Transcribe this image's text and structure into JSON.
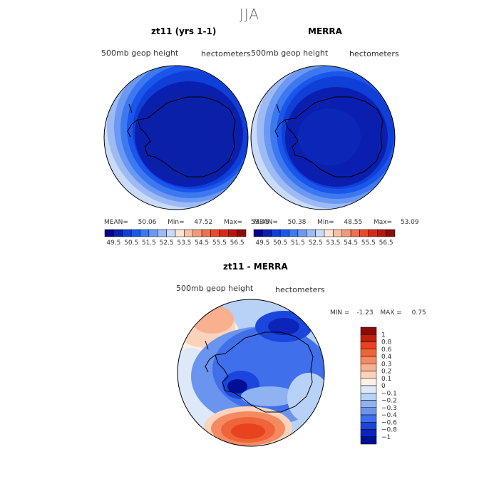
{
  "suptitle": "JJA",
  "panels": [
    {
      "title": "zt11 (yrs 1-1)",
      "field": "500mb geop height",
      "units": "hectometers",
      "stats": {
        "mean_label": "MEAN=",
        "mean": "50.06",
        "min_label": "Min=",
        "min": "47.52",
        "max_label": "Max=",
        "max": "53.45"
      }
    },
    {
      "title": "MERRA",
      "field": "500mb geop height",
      "units": "hectometers",
      "stats": {
        "mean_label": "MEAN=",
        "mean": "50.38",
        "min_label": "Min=",
        "min": "48.55",
        "max_label": "Max=",
        "max": "53.09"
      }
    }
  ],
  "colorbar_top": {
    "labels": [
      "49.5",
      "50.5",
      "51.5",
      "52.5",
      "53.5",
      "54.5",
      "55.5",
      "56.5"
    ],
    "colors": [
      "#00008b",
      "#0a1fb0",
      "#0f3fd6",
      "#1a55ec",
      "#3c78f0",
      "#6b98f2",
      "#9dbaf5",
      "#c9dbfa",
      "#fbe4d4",
      "#f7c1a5",
      "#f39a7a",
      "#ee7150",
      "#e84a2c",
      "#d62a14",
      "#b5170b",
      "#8a0c05"
    ]
  },
  "diff_panel": {
    "title": "zt11 - MERRA",
    "field": "500mb geop height",
    "units": "hectometers",
    "min_label": "MIN =",
    "min": "-1.23",
    "max_label": "MAX =",
    "max": "0.75"
  },
  "colorbar_diff": {
    "labels": [
      "1",
      "0.8",
      "0.6",
      "0.4",
      "0.3",
      "0.2",
      "0.1",
      "0",
      "−0.1",
      "−0.2",
      "−0.3",
      "−0.4",
      "−0.6",
      "−0.8",
      "−1"
    ],
    "colors": [
      "#8a0c05",
      "#c41f0e",
      "#e8431f",
      "#f0643a",
      "#f58a62",
      "#f8b08f",
      "#fbd3bd",
      "#fdf0e6",
      "#dde9f9",
      "#b8d1f6",
      "#8fb2f2",
      "#6a94ee",
      "#3f6fea",
      "#1a46dd",
      "#0c24b8",
      "#000f96"
    ]
  }
}
